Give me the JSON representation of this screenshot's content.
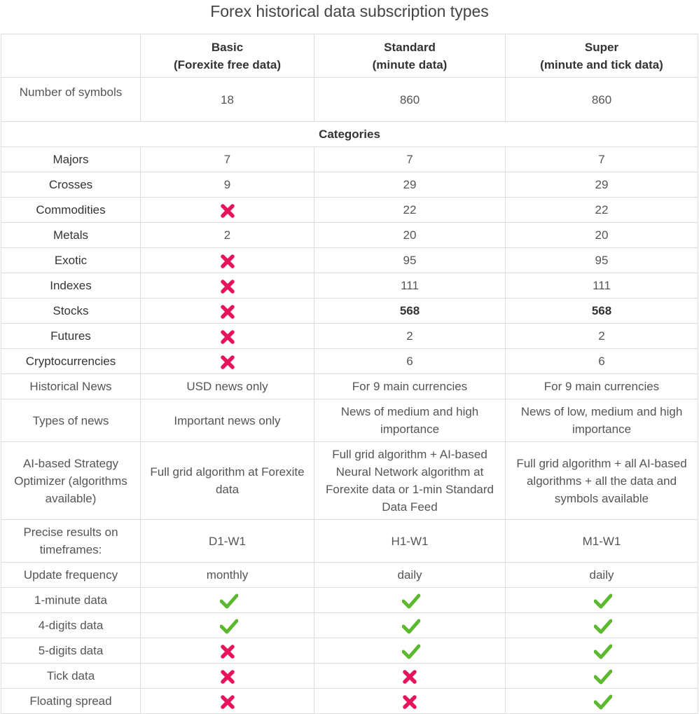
{
  "title": "Forex historical data subscription types",
  "colors": {
    "check": "#5cb82e",
    "cross": "#e8145a",
    "border": "#dddddd"
  },
  "plans": [
    {
      "name": "Basic",
      "subtitle": "(Forexite free data)"
    },
    {
      "name": "Standard",
      "subtitle": "(minute data)"
    },
    {
      "name": "Super",
      "subtitle": "(minute and tick data)"
    }
  ],
  "symbols": {
    "label": "Number of symbols",
    "values": [
      "18",
      "860",
      "860"
    ]
  },
  "categories_heading": "Categories",
  "categories": [
    {
      "label": "Majors",
      "values": [
        "7",
        "7",
        "7"
      ]
    },
    {
      "label": "Crosses",
      "values": [
        "9",
        "29",
        "29"
      ]
    },
    {
      "label": "Commodities",
      "values": [
        "cross",
        "22",
        "22"
      ]
    },
    {
      "label": "Metals",
      "values": [
        "2",
        "20",
        "20"
      ]
    },
    {
      "label": "Exotic",
      "values": [
        "cross",
        "95",
        "95"
      ]
    },
    {
      "label": "Indexes",
      "values": [
        "cross",
        "111",
        "111"
      ]
    },
    {
      "label": "Stocks",
      "values": [
        "cross",
        "568",
        "568"
      ]
    },
    {
      "label": "Futures",
      "values": [
        "cross",
        "2",
        "2"
      ]
    },
    {
      "label": "Cryptocurrencies",
      "values": [
        "cross",
        "6",
        "6"
      ]
    }
  ],
  "features": [
    {
      "label": "Historical News",
      "values": [
        "USD news only",
        "For 9 main currencies",
        "For 9 main currencies"
      ]
    },
    {
      "label": "Types of news",
      "values": [
        "Important news only",
        "News of medium and high importance",
        "News of low, medium and high importance"
      ]
    },
    {
      "label": "AI-based Strategy Optimizer (algorithms available)",
      "values": [
        "Full grid algorithm at Forexite data",
        "Full grid algorithm + AI-based Neural Network algorithm at Forexite data or 1-min Standard Data Feed",
        "Full grid algorithm + all AI-based algorithms + all the data and symbols available"
      ]
    },
    {
      "label": "Precise results on timeframes:",
      "values": [
        "D1-W1",
        "H1-W1",
        "M1-W1"
      ]
    },
    {
      "label": "Update frequency",
      "values": [
        "monthly",
        "daily",
        "daily"
      ]
    }
  ],
  "checks": [
    {
      "label": "1-minute data",
      "values": [
        "check",
        "check",
        "check"
      ]
    },
    {
      "label": "4-digits data",
      "values": [
        "check",
        "check",
        "check"
      ]
    },
    {
      "label": "5-digits data",
      "values": [
        "cross",
        "check",
        "check"
      ]
    },
    {
      "label": "Tick data",
      "values": [
        "cross",
        "cross",
        "check"
      ]
    },
    {
      "label": "Floating spread",
      "values": [
        "cross",
        "cross",
        "check"
      ]
    }
  ]
}
